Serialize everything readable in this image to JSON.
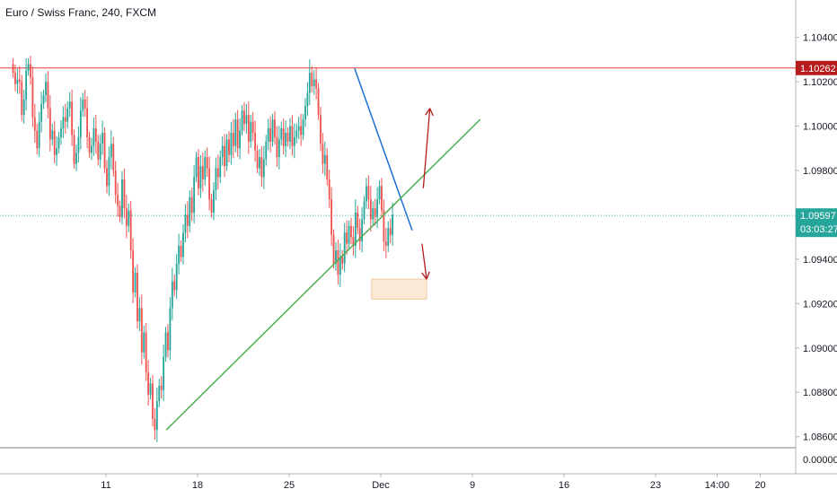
{
  "header": {
    "title": "Euro / Swiss Franc, 240, FXCM"
  },
  "colors": {
    "up": "#26a69a",
    "down": "#ef5350",
    "resistance": "#e53935",
    "trend_down": "#1e6fd6",
    "trend_up": "#4caf50",
    "current_price": "#26a69a",
    "axis_text": "#131722",
    "box_fill": "#fbe9d6",
    "box_stroke": "#f0c9a0",
    "arrow": "#b71c1c",
    "resistance_label_bg": "#b71c1c"
  },
  "price_axis": {
    "ticks": [
      "1.10400",
      "1.10200",
      "1.10000",
      "1.09800",
      "1.09400",
      "1.09200",
      "1.09000",
      "1.08800",
      "1.08600",
      "0.00000"
    ],
    "resistance_label": "1.10262",
    "current_label": "1.09597",
    "countdown_label": "03:03:27"
  },
  "time_axis": {
    "ticks": [
      "11",
      "18",
      "25",
      "Dec",
      "9",
      "16",
      "23",
      "14:00",
      "20"
    ]
  },
  "chart_data": {
    "type": "candlestick",
    "title": "Euro / Swiss Franc, 240, FXCM",
    "ylim": [
      1.0855,
      1.1052
    ],
    "yticks": [
      1.104,
      1.102,
      1.1,
      1.098,
      1.094,
      1.092,
      1.09,
      1.088,
      1.086
    ],
    "lower_pane_value": "0.00000",
    "resistance_level": 1.10262,
    "current_price": 1.09597,
    "countdown": "03:03:27",
    "trendlines": [
      {
        "name": "descending",
        "from": {
          "day": 30.0,
          "price": 1.1026
        },
        "to": {
          "day": 34.4,
          "price": 1.0953
        }
      },
      {
        "name": "ascending",
        "from": {
          "day": 15.6,
          "price": 1.0863
        },
        "to": {
          "day": 39.6,
          "price": 1.1003
        }
      }
    ],
    "support_zone": {
      "day_start": 31.3,
      "day_end": 35.5,
      "price_top": 1.0931,
      "price_bottom": 1.0922
    },
    "arrows": [
      {
        "direction": "up",
        "from": {
          "day": 35.25,
          "price": 1.0972
        },
        "to": {
          "day": 35.75,
          "price": 1.1008
        }
      },
      {
        "direction": "down",
        "from": {
          "day": 35.15,
          "price": 1.0947
        },
        "to": {
          "day": 35.5,
          "price": 1.0931
        }
      }
    ],
    "closes": [
      1.1024,
      1.1019,
      1.1021,
      1.102,
      1.1005,
      1.1012,
      1.1025,
      1.1028,
      1.1022,
      1.1004,
      1.0998,
      1.099,
      1.1002,
      1.101,
      1.1014,
      1.102,
      1.1008,
      1.0994,
      1.0998,
      1.0987,
      1.099,
      1.0995,
      1.0999,
      1.1004,
      1.1002,
      1.1008,
      1.1011,
      1.0996,
      1.0983,
      1.0988,
      1.0995,
      1.1007,
      1.1012,
      1.1008,
      1.0995,
      1.0988,
      1.0991,
      1.0999,
      1.0993,
      1.0985,
      1.0992,
      1.0997,
      1.0981,
      1.0973,
      1.0986,
      1.0992,
      1.098,
      1.0969,
      1.0964,
      1.0959,
      1.0976,
      1.0963,
      1.0955,
      1.0962,
      1.0944,
      1.0925,
      1.0934,
      1.0912,
      1.0918,
      1.0898,
      1.0907,
      1.0889,
      1.0879,
      1.0884,
      1.0868,
      1.0863,
      1.0876,
      1.0883,
      1.0881,
      1.0896,
      1.0907,
      1.0899,
      1.0918,
      1.093,
      1.0926,
      1.0938,
      1.0946,
      1.0941,
      1.0952,
      1.096,
      1.0955,
      1.0968,
      1.0961,
      1.0977,
      1.0986,
      1.0972,
      1.0982,
      1.0976,
      1.0986,
      1.0981,
      1.0967,
      1.0961,
      1.0971,
      1.0981,
      1.0977,
      1.0986,
      1.0991,
      1.0982,
      1.0994,
      1.0987,
      1.0997,
      1.0991,
      1.1003,
      1.099,
      1.0998,
      1.1007,
      1.1001,
      1.1005,
      1.0993,
      1.1002,
      1.0997,
      1.0989,
      1.0981,
      1.0986,
      1.0977,
      1.0985,
      1.0993,
      1.0999,
      1.0993,
      1.1003,
      1.0995,
      1.0986,
      1.0994,
      1.0999,
      1.0991,
      1.0997,
      1.0993,
      1.1,
      1.0991,
      1.0995,
      1.0998,
      1.1,
      1.0996,
      1.1003,
      1.1009,
      1.1015,
      1.1024,
      1.1018,
      1.1021,
      1.1017,
      1.1005,
      1.0992,
      1.0983,
      1.0987,
      1.0976,
      1.0967,
      1.0951,
      1.0938,
      1.0944,
      1.0933,
      1.0941,
      1.0938,
      1.0952,
      1.0947,
      1.0955,
      1.095,
      1.0946,
      1.0961,
      1.0954,
      1.0948,
      1.0958,
      1.0966,
      1.0973,
      1.0967,
      1.0958,
      1.0963,
      1.0959,
      1.0967,
      1.0973,
      1.0962,
      1.0948,
      1.0946,
      1.0954,
      1.0951,
      1.096
    ],
    "x_tick_days": [
      11,
      18,
      25,
      32,
      39,
      46,
      53,
      57.7,
      61
    ],
    "first_bar_day": 3.9,
    "bars_per_day": 6
  }
}
